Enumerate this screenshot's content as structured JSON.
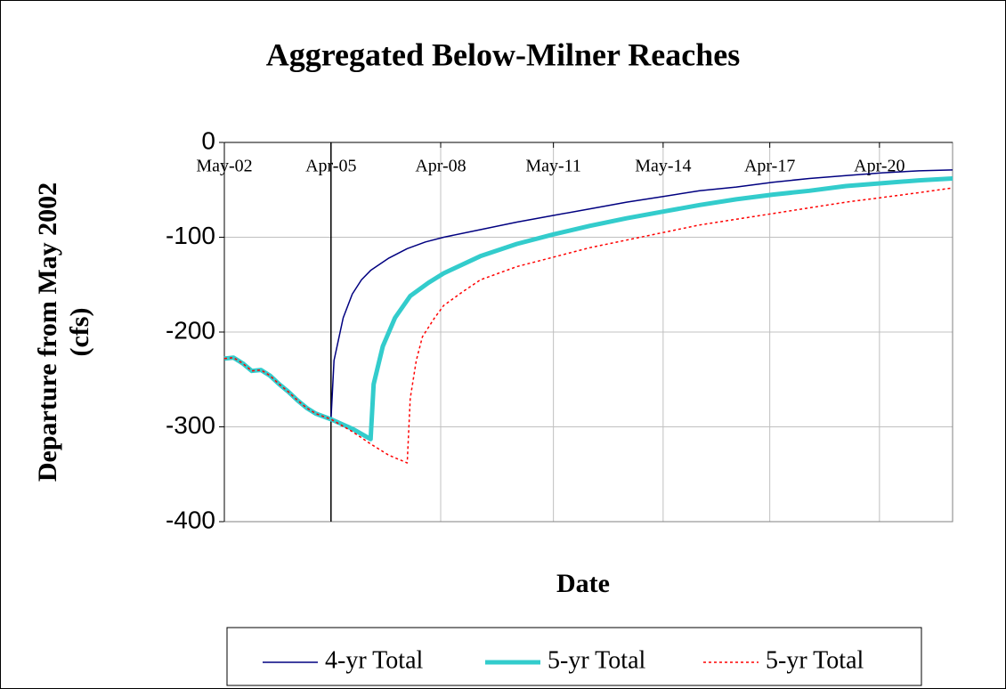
{
  "chart_data": {
    "type": "line",
    "title": "Aggregated Below-Milner Reaches",
    "x_label": "Date",
    "y_label": [
      "Departure from May 2002",
      "(cfs)"
    ],
    "xlim": [
      "May-02",
      "Apr-22"
    ],
    "xticks": [
      "May-02",
      "Apr-05",
      "Apr-08",
      "May-11",
      "May-14",
      "Apr-17",
      "Apr-20"
    ],
    "ylim": [
      -400,
      0
    ],
    "yticks": [
      0,
      -100,
      -200,
      -300,
      -400
    ],
    "grid": true,
    "vline": "Apr-05",
    "legend": "bottom",
    "series": [
      {
        "name": "4-yr Total",
        "color": "#000080",
        "width": 1.5,
        "dash": "solid",
        "x": [
          "May-02",
          "Aug-02",
          "Nov-02",
          "Feb-03",
          "May-03",
          "Aug-03",
          "Nov-03",
          "Feb-04",
          "May-04",
          "Aug-04",
          "Nov-04",
          "Apr-05",
          "May-05",
          "Aug-05",
          "Nov-05",
          "Feb-06",
          "May-06",
          "Nov-06",
          "May-07",
          "Nov-07",
          "May-08",
          "May-09",
          "May-10",
          "May-11",
          "May-12",
          "May-13",
          "May-14",
          "May-15",
          "May-16",
          "May-17",
          "May-18",
          "May-19",
          "May-20",
          "May-21",
          "Apr-22"
        ],
        "values": [
          -228,
          -227,
          -233,
          -241,
          -240,
          -246,
          -255,
          -263,
          -272,
          -280,
          -286,
          -292,
          -230,
          -185,
          -160,
          -145,
          -135,
          -122,
          -112,
          -105,
          -100,
          -92,
          -84,
          -77,
          -70,
          -63,
          -57,
          -51,
          -47,
          -42,
          -38,
          -35,
          -32,
          -30,
          -29
        ]
      },
      {
        "name": "5-yr Total",
        "color": "#33CCCC",
        "width": 5,
        "dash": "solid",
        "x": [
          "May-02",
          "Aug-02",
          "Nov-02",
          "Feb-03",
          "May-03",
          "Aug-03",
          "Nov-03",
          "Feb-04",
          "May-04",
          "Aug-04",
          "Nov-04",
          "Apr-05",
          "Nov-05",
          "May-06",
          "Jun-06",
          "Sep-06",
          "Jan-07",
          "Jun-07",
          "Dec-07",
          "May-08",
          "May-09",
          "May-10",
          "May-11",
          "May-12",
          "May-13",
          "May-14",
          "May-15",
          "May-16",
          "May-17",
          "May-18",
          "May-19",
          "May-20",
          "May-21",
          "Apr-22"
        ],
        "values": [
          -228,
          -227,
          -233,
          -241,
          -240,
          -246,
          -255,
          -263,
          -272,
          -280,
          -286,
          -292,
          -302,
          -313,
          -255,
          -215,
          -185,
          -162,
          -148,
          -138,
          -120,
          -107,
          -97,
          -88,
          -80,
          -73,
          -66,
          -60,
          -55,
          -51,
          -46,
          -43,
          -40,
          -38
        ]
      },
      {
        "name": "5-yr Total",
        "color": "#FF0000",
        "width": 1.5,
        "dash": "dotted",
        "x": [
          "May-02",
          "Aug-02",
          "Nov-02",
          "Feb-03",
          "May-03",
          "Aug-03",
          "Nov-03",
          "Feb-04",
          "May-04",
          "Aug-04",
          "Nov-04",
          "Apr-05",
          "Nov-05",
          "May-06",
          "Nov-06",
          "May-07",
          "Jun-07",
          "Aug-07",
          "Oct-07",
          "Feb-08",
          "May-08",
          "Nov-08",
          "May-09",
          "May-10",
          "May-11",
          "May-12",
          "May-13",
          "May-14",
          "May-15",
          "May-16",
          "May-17",
          "May-18",
          "May-19",
          "May-20",
          "May-21",
          "Apr-22"
        ],
        "values": [
          -228,
          -227,
          -233,
          -241,
          -240,
          -246,
          -255,
          -263,
          -272,
          -280,
          -286,
          -292,
          -305,
          -318,
          -330,
          -338,
          -270,
          -230,
          -205,
          -185,
          -172,
          -158,
          -145,
          -131,
          -121,
          -111,
          -103,
          -95,
          -87,
          -81,
          -75,
          -69,
          -63,
          -58,
          -53,
          -48
        ]
      }
    ]
  }
}
